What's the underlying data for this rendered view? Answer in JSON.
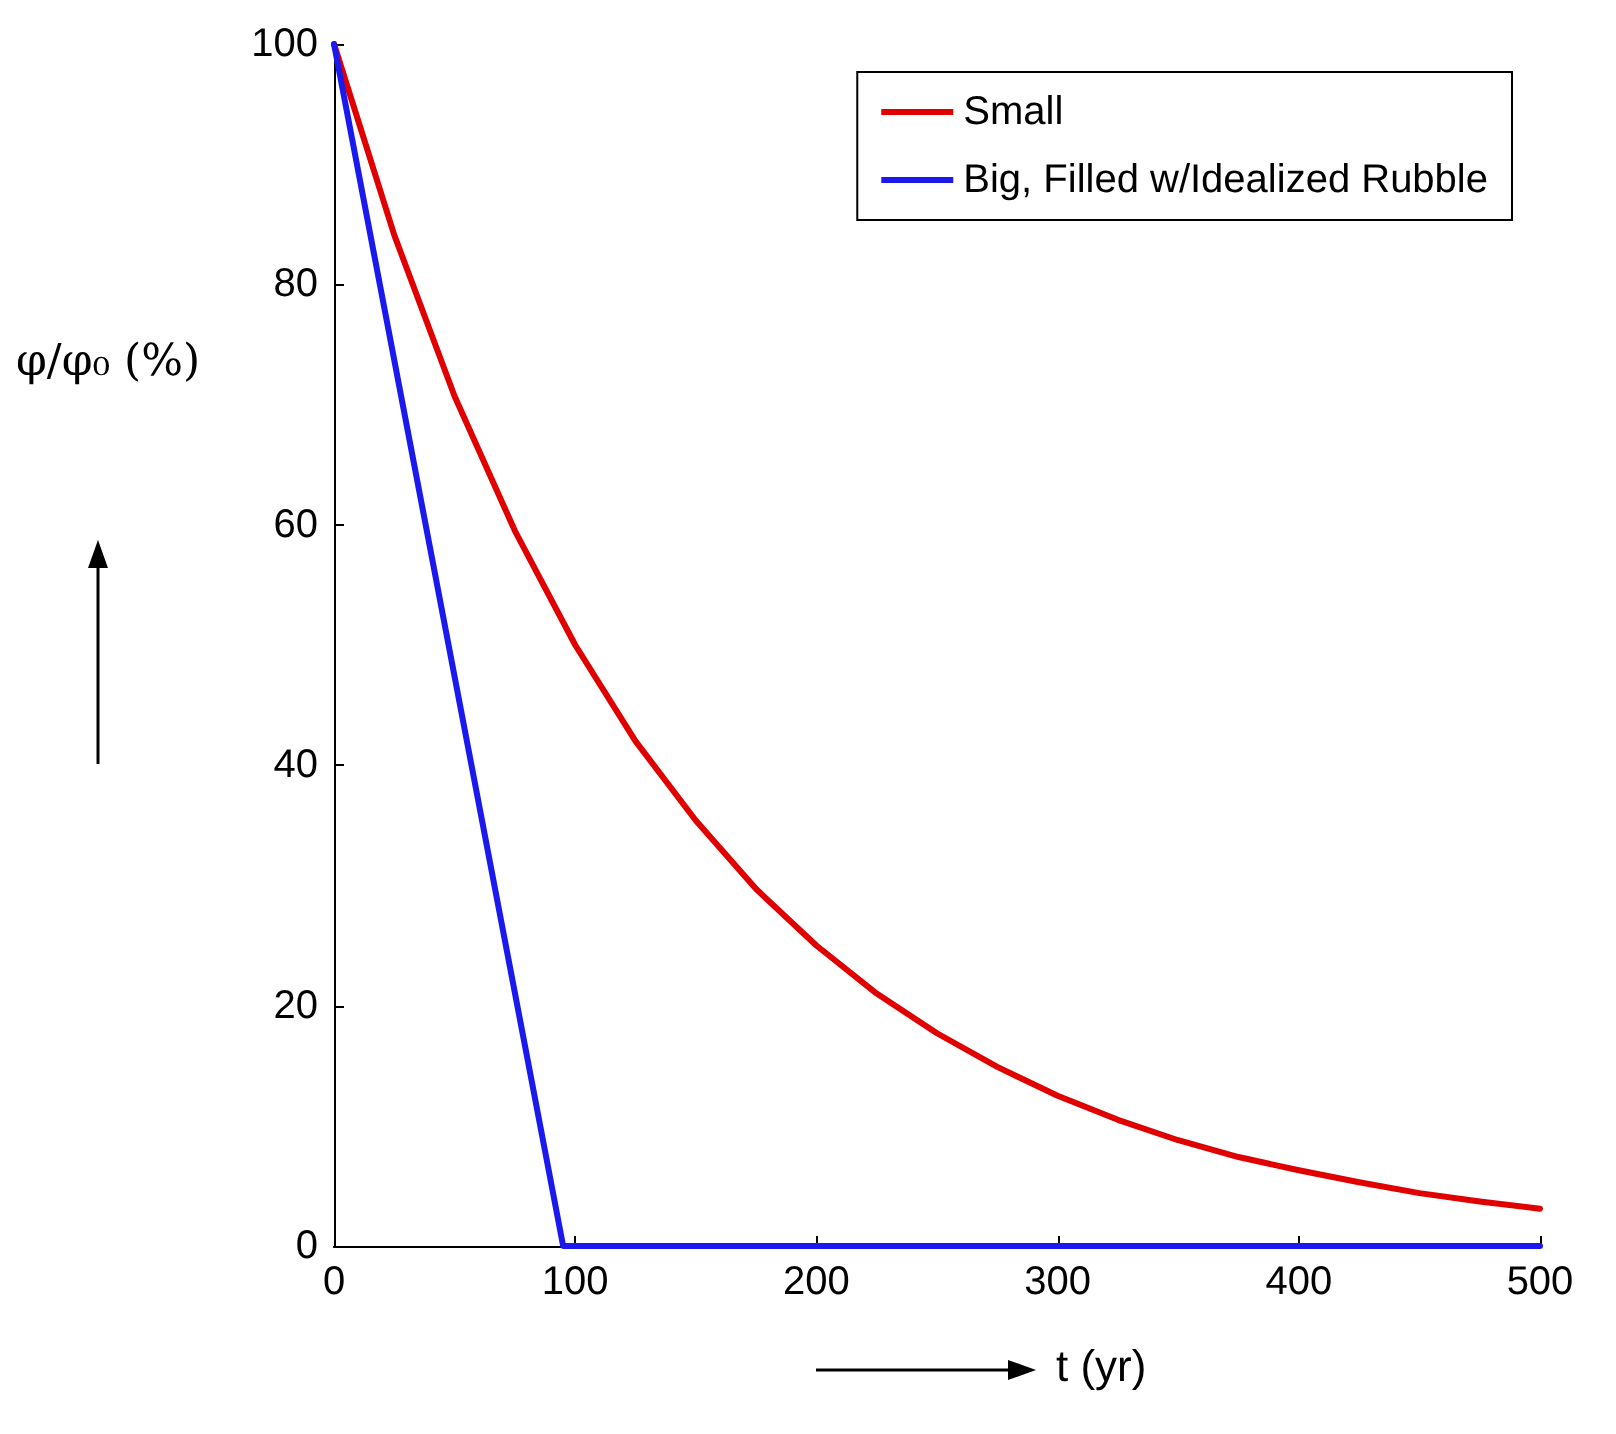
{
  "chart_data": {
    "type": "line",
    "xlabel": "t (yr)",
    "ylabel": "φ/φ₀ (%)",
    "xlim": [
      0,
      500
    ],
    "xticks": [
      0,
      100,
      200,
      300,
      400,
      500
    ],
    "ylim": [
      0,
      100
    ],
    "yticks": [
      0,
      20,
      40,
      60,
      80,
      100
    ],
    "grid": false,
    "legend": "top right",
    "marker": "none",
    "line_style": "solid",
    "series": [
      {
        "name": "Small",
        "color": "#e00000",
        "x": [
          0,
          25,
          50,
          75,
          100,
          125,
          150,
          175,
          200,
          225,
          250,
          275,
          300,
          325,
          350,
          375,
          400,
          425,
          450,
          475,
          500
        ],
        "values": [
          100,
          84.1,
          70.7,
          59.5,
          50,
          42,
          35.4,
          29.7,
          25,
          21,
          17.7,
          14.9,
          12.5,
          10.5,
          8.8,
          7.4,
          6.3,
          5.3,
          4.4,
          3.7,
          3.1
        ]
      },
      {
        "name": "Big, Filled w/Idealized Rubble",
        "color": "#1a1aee",
        "x": [
          0,
          95,
          500
        ],
        "values": [
          100,
          0,
          0
        ]
      }
    ]
  }
}
